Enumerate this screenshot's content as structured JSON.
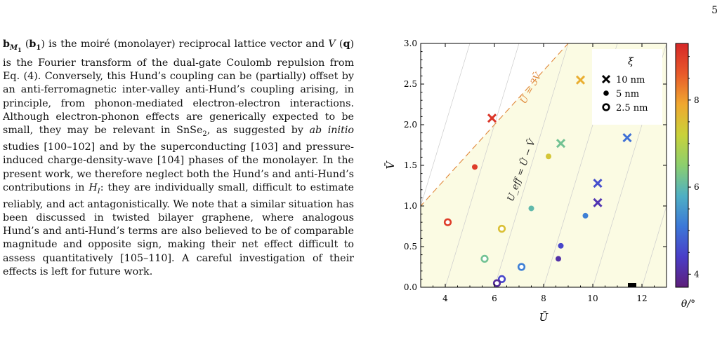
{
  "page": {
    "number": "5"
  },
  "paragraph": {
    "lead_b_sub": "M",
    "lead_b_subsub": "1",
    "lead_b1_sub": "1",
    "text_1": " is the moiré (monolayer) reciprocal lattice vector and ",
    "v_symbol": "V",
    "q_symbol": "q",
    "text_2": " is the Fourier transform of the dual-gate Coulomb repulsion from Eq. (4). Conversely, this Hund’s coupling can be (partially) offset by an anti-ferromagnetic inter-valley anti-Hund’s coupling arising, in principle, from phonon-mediated electron-electron interactions. Although electron-phonon effects are generically expected to be small, they may be relevant in SnSe",
    "snse_sub": "2",
    "text_3": ", as suggested by ",
    "ab_initio": "ab initio",
    "text_4": " studies [100–102] and by the superconducting [103] and pressure-induced charge-density-wave [104] phases of the monolayer. In the present work, we therefore neglect both the Hund’s and anti-Hund’s contributions in ",
    "h_symbol": "H",
    "h_sub": "I",
    "text_5": ": they are individually small, difficult to estimate reliably, and act antagonistically. We note that a similar situation has been discussed in twisted bilayer graphene, where analogous Hund’s and anti-Hund’s terms are also believed to be of comparable magnitude and opposite sign, making their net effect difficult to assess quantitatively [105–110]. A careful investigation of their effects is left for future work."
  },
  "chart_data": {
    "type": "scatter",
    "xlabel": "Ū",
    "ylabel": "V̄",
    "xlim": [
      3.0,
      13.0
    ],
    "ylim": [
      0.0,
      3.0
    ],
    "x_ticks": [
      "4",
      "6",
      "8",
      "10",
      "12"
    ],
    "y_ticks": [
      "0.0",
      "0.5",
      "1.0",
      "1.5",
      "2.0",
      "2.5",
      "3.0"
    ],
    "colorbar": {
      "label": "θ/°",
      "ticks": [
        "4",
        "6",
        "8"
      ],
      "tick_values": [
        4,
        6,
        8
      ],
      "range": [
        3.7,
        9.3
      ],
      "colormap": [
        "#5e1f7a",
        "#4a3ec8",
        "#3c78d8",
        "#4fb0c4",
        "#8ccf6e",
        "#c9d23a",
        "#f0a830",
        "#e85a2a",
        "#d62728"
      ]
    },
    "legend": {
      "title": "ξ",
      "position": "top-right",
      "entries": [
        {
          "marker": "cross",
          "label": "10 nm"
        },
        {
          "marker": "dot",
          "label": "5 nm"
        },
        {
          "marker": "ring",
          "label": "2.5 nm"
        }
      ]
    },
    "annotations": {
      "boundary_line": "Ū = 3V̄",
      "contour_label": "U_eff = Ū − V̄"
    },
    "boundary_line": {
      "slope": 3,
      "intercept": 0
    },
    "contour_lines": {
      "offsets": [
        -6,
        -4,
        -2,
        0,
        2,
        4,
        6,
        8,
        10,
        12
      ]
    },
    "shaded_region": "Ū > 3V̄",
    "colors": {
      "background_allowed": "#fbfbe3",
      "boundary": "#e0883a",
      "contour": "#cccccc"
    },
    "series": [
      {
        "name": "10 nm",
        "marker": "cross",
        "points": [
          {
            "x": 5.9,
            "y": 2.08,
            "theta": 9.1
          },
          {
            "x": 9.5,
            "y": 2.55,
            "theta": 7.8
          },
          {
            "x": 8.7,
            "y": 1.77,
            "theta": 6.2
          },
          {
            "x": 11.4,
            "y": 1.84,
            "theta": 5.0
          },
          {
            "x": 10.2,
            "y": 1.28,
            "theta": 4.6
          },
          {
            "x": 10.2,
            "y": 1.04,
            "theta": 4.2
          }
        ]
      },
      {
        "name": "5 nm",
        "marker": "dot",
        "points": [
          {
            "x": 5.2,
            "y": 1.48,
            "theta": 9.0
          },
          {
            "x": 8.2,
            "y": 1.61,
            "theta": 7.4
          },
          {
            "x": 7.5,
            "y": 0.97,
            "theta": 6.0
          },
          {
            "x": 9.7,
            "y": 0.88,
            "theta": 5.2
          },
          {
            "x": 8.7,
            "y": 0.51,
            "theta": 4.5
          },
          {
            "x": 8.6,
            "y": 0.35,
            "theta": 4.1
          }
        ]
      },
      {
        "name": "2.5 nm",
        "marker": "ring",
        "points": [
          {
            "x": 4.1,
            "y": 0.8,
            "theta": 9.0
          },
          {
            "x": 6.3,
            "y": 0.72,
            "theta": 7.5
          },
          {
            "x": 5.6,
            "y": 0.35,
            "theta": 6.2
          },
          {
            "x": 7.1,
            "y": 0.25,
            "theta": 5.2
          },
          {
            "x": 6.3,
            "y": 0.1,
            "theta": 4.5
          },
          {
            "x": 6.1,
            "y": 0.05,
            "theta": 4.0
          }
        ]
      },
      {
        "name": "",
        "marker": "square",
        "points": [
          {
            "x": 11.6,
            "y": 0.0,
            "theta": null
          }
        ]
      }
    ]
  }
}
